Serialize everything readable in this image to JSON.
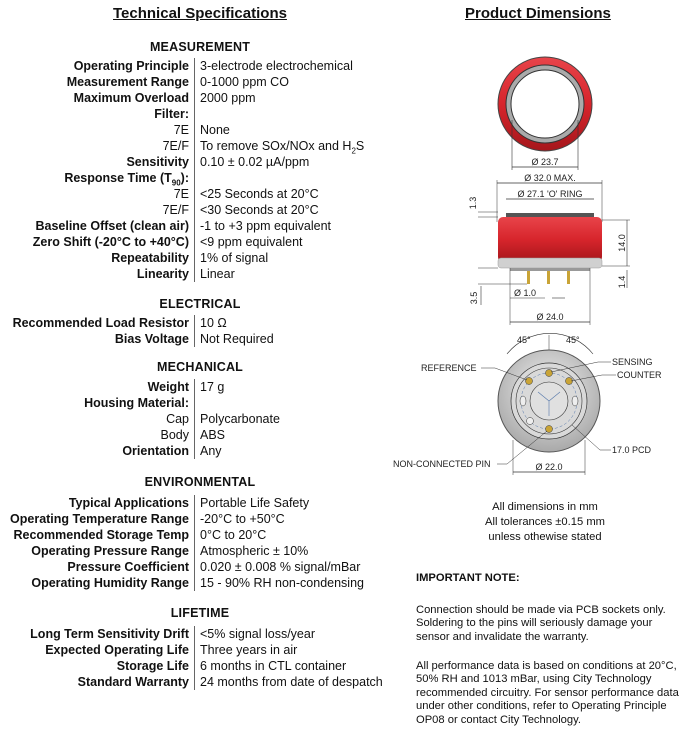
{
  "left_title": "Technical Specifications",
  "right_title": "Product Dimensions",
  "sections": [
    {
      "heading": "MEASUREMENT",
      "rows": [
        {
          "label": "Operating Principle",
          "bold": true,
          "value": "3-electrode electrochemical"
        },
        {
          "label": "Measurement Range",
          "bold": true,
          "value": "0-1000 ppm CO"
        },
        {
          "label": "Maximum Overload",
          "bold": true,
          "value": "2000 ppm"
        },
        {
          "label": "Filter:",
          "bold": true,
          "value": ""
        },
        {
          "label": "7E",
          "bold": false,
          "value": "None"
        },
        {
          "label": "7E/F",
          "bold": false,
          "value": "To remove SOx/NOx and H",
          "value_sub": "2",
          "value_after": "S"
        },
        {
          "label": "Sensitivity",
          "bold": true,
          "value": "0.10 ± 0.02 µA/ppm"
        },
        {
          "label": "Response Time (T",
          "label_sub": "90",
          "label_after": "):",
          "bold": true,
          "value": ""
        },
        {
          "label": "7E",
          "bold": false,
          "value": "<25 Seconds at 20°C"
        },
        {
          "label": "7E/F",
          "bold": false,
          "value": "<30 Seconds at 20°C"
        },
        {
          "label": "Baseline Offset (clean air)",
          "bold": true,
          "value": "-1 to +3 ppm equivalent"
        },
        {
          "label": "Zero Shift (-20°C to +40°C)",
          "bold": true,
          "value": "<9 ppm equivalent"
        },
        {
          "label": "Repeatability",
          "bold": true,
          "value": "1% of signal"
        },
        {
          "label": "Linearity",
          "bold": true,
          "value": "Linear"
        }
      ]
    },
    {
      "heading": "ELECTRICAL",
      "rows": [
        {
          "label": "Recommended Load Resistor",
          "bold": true,
          "value": "10 Ω"
        },
        {
          "label": "Bias Voltage",
          "bold": true,
          "value": "Not Required"
        }
      ]
    },
    {
      "heading": "MECHANICAL",
      "rows": [
        {
          "label": "Weight",
          "bold": true,
          "value": "17 g"
        },
        {
          "label": "Housing Material:",
          "bold": true,
          "value": ""
        },
        {
          "label": "Cap",
          "bold": false,
          "value": "Polycarbonate"
        },
        {
          "label": "Body",
          "bold": false,
          "value": "ABS"
        },
        {
          "label": "Orientation",
          "bold": true,
          "value": "Any"
        }
      ]
    },
    {
      "heading": "ENVIRONMENTAL",
      "rows": [
        {
          "label": "Typical Applications",
          "bold": true,
          "value": "Portable Life Safety"
        },
        {
          "label": "Operating Temperature Range",
          "bold": true,
          "value": "-20°C  to +50°C"
        },
        {
          "label": "Recommended Storage Temp",
          "bold": true,
          "value": "0°C to 20°C"
        },
        {
          "label": "Operating Pressure Range",
          "bold": true,
          "value": "Atmospheric ± 10%"
        },
        {
          "label": "Pressure Coefficient",
          "bold": true,
          "value": "0.020 ± 0.008 % signal/mBar"
        },
        {
          "label": "Operating Humidity Range",
          "bold": true,
          "value": "15 - 90% RH non-condensing"
        }
      ]
    },
    {
      "heading": "LIFETIME",
      "rows": [
        {
          "label": "Long Term Sensitivity Drift",
          "bold": true,
          "value": "<5% signal loss/year"
        },
        {
          "label": "Expected Operating Life",
          "bold": true,
          "value": "Three years in air"
        },
        {
          "label": "Storage Life",
          "bold": true,
          "value": "6 months in CTL container"
        },
        {
          "label": "Standard Warranty",
          "bold": true,
          "value": "24 months from date of despatch"
        }
      ]
    }
  ],
  "drawing": {
    "top_dia": "Ø 23.7",
    "max_dia": "Ø 32.0  MAX.",
    "oring_dia": "Ø 27.1  'O' RING",
    "h_top": "1.3",
    "h_body": "14.0",
    "h_pin_base": "1.4",
    "h_pin": "3.5",
    "pin_dia": "Ø 1.0",
    "base_dia": "Ø 24.0",
    "angle_left": "45°",
    "angle_right": "45°",
    "reference": "REFERENCE",
    "sensing": "SENSING",
    "counter": "COUNTER",
    "non_connected": "NON-CONNECTED PIN",
    "pcd": "17.0 PCD",
    "bottom_dia": "Ø 22.0",
    "colors": {
      "body": "#d7252c",
      "grey": "#c8c8c8",
      "pin": "#c9a437"
    }
  },
  "dim_notes": [
    "All dimensions in mm",
    "All tolerances ±0.15 mm",
    "unless othewise stated"
  ],
  "important": {
    "heading": "IMPORTANT NOTE:",
    "p1": "Connection should be made via PCB sockets only. Soldering to the pins will seriously damage your sensor and invalidate the warranty.",
    "p2": "All performance data is based on conditions at 20°C, 50% RH and 1013 mBar, using City Technology recommended circuitry. For sensor performance data under other conditions, refer to Operating Principle OP08 or contact City Technology."
  }
}
